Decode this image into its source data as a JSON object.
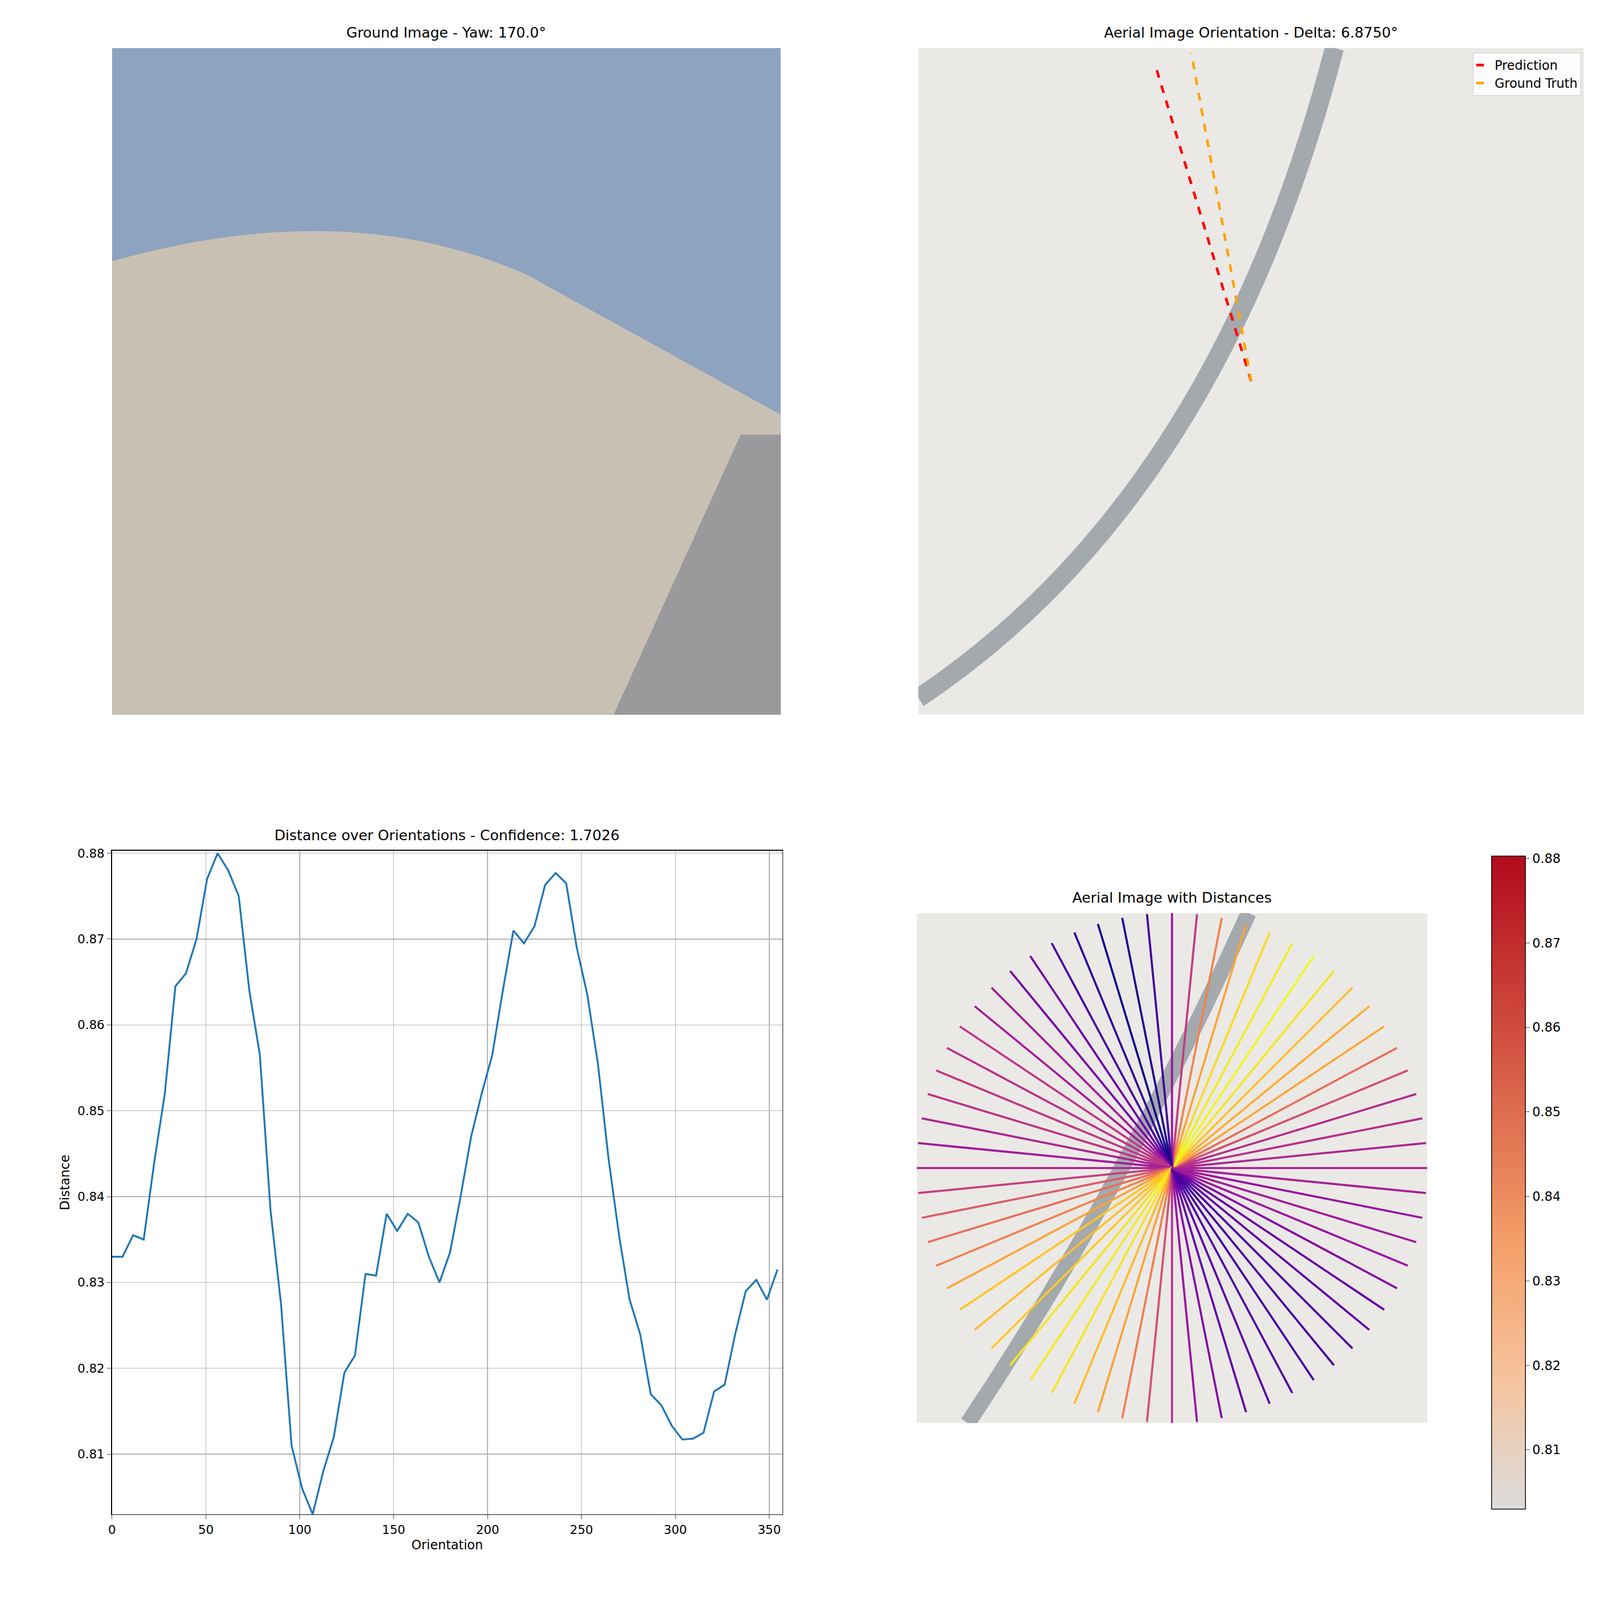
{
  "chart_data": [
    {
      "type": "image",
      "title": "Ground Image - Yaw: 170.0°",
      "tick_labels": false
    },
    {
      "type": "line",
      "title": "Aerial Image Orientation - Delta: 6.8750°",
      "tick_labels": false,
      "xlim": [
        0,
        200
      ],
      "ylim": [
        200,
        0
      ],
      "legend": "upper right",
      "series": [
        {
          "name": "Prediction",
          "color": "red",
          "line_style": "dashed",
          "x": [
            100,
            71
          ],
          "y": [
            100,
            4.6
          ]
        },
        {
          "name": "Ground Truth",
          "color": "orange",
          "line_style": "dashed",
          "x": [
            100,
            82
          ],
          "y": [
            100,
            1.5
          ]
        }
      ]
    },
    {
      "type": "line",
      "title": "Distance over Orientations - Confidence: 1.7026",
      "x_label": "Orientation",
      "y_label": "Distance",
      "grid": true,
      "color": "#1f77b4",
      "xlim": [
        0,
        357
      ],
      "ylim": [
        0.803,
        0.8803
      ],
      "xticks": [
        0,
        50,
        100,
        150,
        200,
        250,
        300,
        350
      ],
      "yticks": [
        0.81,
        0.82,
        0.83,
        0.84,
        0.85,
        0.86,
        0.87,
        0.88
      ],
      "x": [
        0,
        5.625,
        11.25,
        16.875,
        22.5,
        28.125,
        33.75,
        39.375,
        45,
        50.625,
        56.25,
        61.875,
        67.5,
        73.125,
        78.75,
        84.375,
        90,
        95.625,
        101.25,
        106.875,
        112.5,
        118.125,
        123.75,
        129.375,
        135,
        140.625,
        146.25,
        151.875,
        157.5,
        163.125,
        168.75,
        174.375,
        180,
        185.625,
        191.25,
        196.875,
        202.5,
        208.125,
        213.75,
        219.375,
        225,
        230.625,
        236.25,
        241.875,
        247.5,
        253.125,
        258.75,
        264.375,
        270,
        275.625,
        281.25,
        286.875,
        292.5,
        298.125,
        303.75,
        309.375,
        315,
        320.625,
        326.25,
        331.875,
        337.5,
        343.125,
        348.75,
        354.375
      ],
      "values": [
        0.833,
        0.833,
        0.8355,
        0.835,
        0.844,
        0.852,
        0.8645,
        0.866,
        0.87,
        0.877,
        0.88,
        0.878,
        0.875,
        0.864,
        0.8565,
        0.8385,
        0.8275,
        0.811,
        0.806,
        0.803,
        0.808,
        0.812,
        0.8195,
        0.8215,
        0.831,
        0.8308,
        0.838,
        0.836,
        0.838,
        0.837,
        0.833,
        0.83,
        0.8335,
        0.84,
        0.847,
        0.852,
        0.8565,
        0.864,
        0.871,
        0.8695,
        0.8715,
        0.8763,
        0.8777,
        0.8765,
        0.869,
        0.8635,
        0.8555,
        0.8445,
        0.8355,
        0.828,
        0.824,
        0.817,
        0.8157,
        0.8133,
        0.8117,
        0.8118,
        0.8125,
        0.8173,
        0.8181,
        0.824,
        0.829,
        0.8303,
        0.828,
        0.8315
      ]
    },
    {
      "type": "radial_lines",
      "title": "Aerial Image with Distances",
      "tick_labels": false,
      "colorbar": {
        "range": [
          0.803,
          0.8803
        ],
        "ticks": [
          0.81,
          0.82,
          0.83,
          0.84,
          0.85,
          0.86,
          0.87,
          0.88
        ]
      }
    }
  ]
}
